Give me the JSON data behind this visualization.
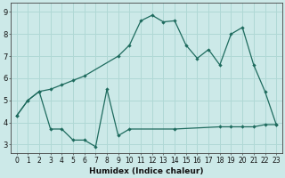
{
  "xlabel": "Humidex (Indice chaleur)",
  "background_color": "#cce9e8",
  "line_color": "#1e6b5e",
  "grid_color": "#b0d8d5",
  "ylim": [
    2.6,
    9.4
  ],
  "xlim": [
    -0.5,
    23.5
  ],
  "yticks": [
    3,
    4,
    5,
    6,
    7,
    8,
    9
  ],
  "xticks": [
    0,
    1,
    2,
    3,
    4,
    5,
    6,
    7,
    8,
    9,
    10,
    11,
    12,
    13,
    14,
    15,
    16,
    17,
    18,
    19,
    20,
    21,
    22,
    23
  ],
  "curve1_x": [
    0,
    1,
    2,
    3,
    4,
    5,
    6,
    9,
    10,
    11,
    12,
    13,
    14,
    15,
    16,
    17,
    18,
    19,
    20,
    21,
    22,
    23
  ],
  "curve1_y": [
    4.3,
    5.0,
    5.4,
    5.5,
    5.7,
    5.9,
    6.1,
    7.0,
    7.5,
    8.6,
    8.85,
    8.55,
    8.6,
    7.5,
    6.9,
    7.3,
    6.6,
    8.0,
    8.3,
    6.6,
    5.4,
    3.9
  ],
  "curve2_x": [
    0,
    1,
    2,
    3,
    4,
    5,
    6,
    7,
    8,
    9,
    10,
    14,
    18,
    19,
    20,
    21,
    22,
    23
  ],
  "curve2_y": [
    4.3,
    5.0,
    5.4,
    3.7,
    3.7,
    3.2,
    3.2,
    2.9,
    5.5,
    3.4,
    3.7,
    3.7,
    3.8,
    3.8,
    3.8,
    3.8,
    3.9,
    3.9
  ],
  "xlabel_fontsize": 6.5,
  "tick_fontsize": 5.5
}
